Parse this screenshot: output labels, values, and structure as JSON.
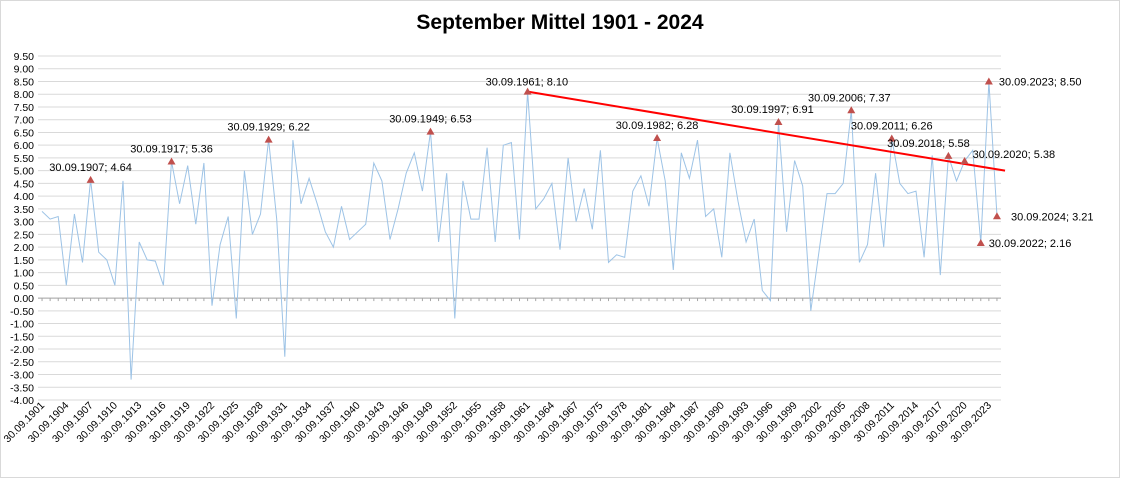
{
  "chart_data": {
    "type": "line",
    "title": "September Mittel 1901 - 2024",
    "ylim": [
      -4.0,
      9.5
    ],
    "y_step": 0.5,
    "grid": true,
    "colors": {
      "series": "#9dc3e6",
      "trend": "#ff0000",
      "marker": "#c0504d",
      "grid": "#d9d9d9"
    },
    "x_tick_labels": [
      "30.09.1901",
      "30.09.1904",
      "30.09.1907",
      "30.09.1910",
      "30.09.1913",
      "30.09.1916",
      "30.09.1919",
      "30.09.1922",
      "30.09.1925",
      "30.09.1928",
      "30.09.1931",
      "30.09.1934",
      "30.09.1937",
      "30.09.1940",
      "30.09.1943",
      "30.09.1946",
      "30.09.1949",
      "30.09.1952",
      "30.09.1955",
      "30.09.1958",
      "30.09.1961",
      "30.09.1964",
      "30.09.1967",
      "30.09.1975",
      "30.09.1978",
      "30.09.1981",
      "30.09.1984",
      "30.09.1987",
      "30.09.1990",
      "30.09.1993",
      "30.09.1996",
      "30.09.1999",
      "30.09.2002",
      "30.09.2005",
      "30.09.2008",
      "30.09.2011",
      "30.09.2014",
      "30.09.2017",
      "30.09.2020",
      "30.09.2023"
    ],
    "values": [
      3.4,
      3.1,
      3.2,
      0.5,
      3.3,
      1.4,
      4.64,
      1.8,
      1.5,
      0.5,
      4.6,
      -3.2,
      2.2,
      1.5,
      1.45,
      0.5,
      5.36,
      3.7,
      5.2,
      2.9,
      5.3,
      -0.3,
      2.1,
      3.2,
      -0.8,
      5.0,
      2.5,
      3.3,
      6.22,
      3.1,
      -2.3,
      6.2,
      3.7,
      4.7,
      3.7,
      2.6,
      2.0,
      3.6,
      2.3,
      2.6,
      2.9,
      5.3,
      4.6,
      2.3,
      3.5,
      4.9,
      5.7,
      4.2,
      6.53,
      2.2,
      4.9,
      -0.8,
      4.6,
      3.1,
      3.1,
      5.9,
      2.2,
      6.0,
      6.1,
      2.3,
      8.1,
      3.5,
      3.9,
      4.5,
      1.9,
      5.5,
      3.0,
      4.3,
      2.7,
      5.8,
      1.4,
      1.7,
      1.6,
      4.2,
      4.8,
      3.6,
      6.28,
      4.6,
      1.1,
      5.7,
      4.7,
      6.2,
      3.2,
      3.5,
      1.6,
      5.7,
      3.8,
      2.2,
      3.1,
      0.3,
      -0.1,
      6.91,
      2.6,
      5.4,
      4.4,
      -0.5,
      1.8,
      4.1,
      4.1,
      4.5,
      7.37,
      1.4,
      2.1,
      4.9,
      2.0,
      6.26,
      4.5,
      4.1,
      4.2,
      1.6,
      5.6,
      0.9,
      5.58,
      4.6,
      5.38,
      5.8,
      2.16,
      8.5,
      3.21
    ],
    "annotations": [
      {
        "index": 6,
        "label": "30.09.1907; 4.64"
      },
      {
        "index": 16,
        "label": "30.09.1917; 5.36"
      },
      {
        "index": 28,
        "label": "30.09.1929; 6.22"
      },
      {
        "index": 48,
        "label": "30.09.1949; 6.53"
      },
      {
        "index": 60,
        "label": "30.09.1961; 8.10"
      },
      {
        "index": 76,
        "label": "30.09.1982; 6.28"
      },
      {
        "index": 91,
        "label": "30.09.1997; 6.91"
      },
      {
        "index": 100,
        "label": "30.09.2006; 7.37"
      },
      {
        "index": 105,
        "label": "30.09.2011; 6.26"
      },
      {
        "index": 112,
        "label": "30.09.2018; 5.58"
      },
      {
        "index": 114,
        "label": "30.09.2020; 5.38"
      },
      {
        "index": 116,
        "label": "30.09.2022; 2.16"
      },
      {
        "index": 117,
        "label": "30.09.2023; 8.50"
      },
      {
        "index": 118,
        "label": "30.09.2024; 3.21"
      }
    ],
    "trend_line": {
      "from_index": 60,
      "from_value": 8.1,
      "to_index": 119,
      "to_value": 5.0
    }
  }
}
